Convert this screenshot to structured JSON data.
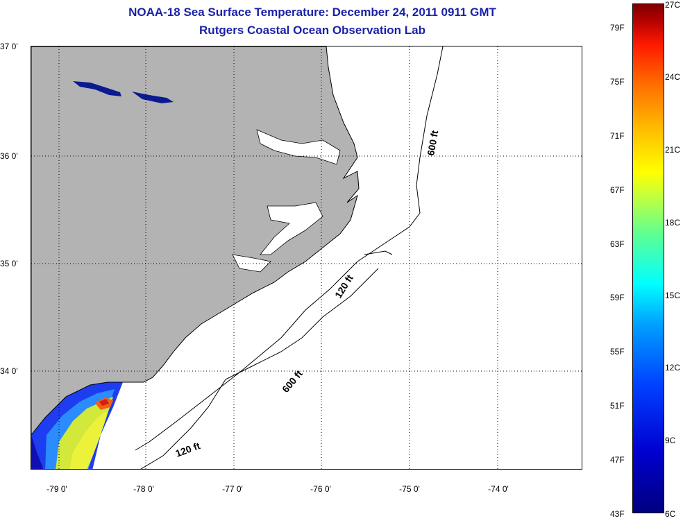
{
  "title": {
    "line1": "NOAA-18 Sea Surface Temperature:  December 24, 2011 0911 GMT",
    "line2": "Rutgers Coastal Ocean Observation Lab"
  },
  "map": {
    "lat_labels": [
      "37 0'",
      "36 0'",
      "35 0'",
      "34 0'"
    ],
    "lon_labels": [
      "-79 0'",
      "-78 0'",
      "-77 0'",
      "-76 0'",
      "-75 0'",
      "-74 0'"
    ],
    "lat_range": [
      33.1,
      37.0
    ],
    "lon_range": [
      -79.3,
      -73.05
    ],
    "grid": "dotted",
    "land_color": "#b3b3b3",
    "contour_labels": [
      "600 ft",
      "120 ft",
      "600 ft",
      "120 ft"
    ]
  },
  "colorbar": {
    "fahrenheit": [
      "79F",
      "75F",
      "71F",
      "67F",
      "63F",
      "59F",
      "55F",
      "51F",
      "47F",
      "43F"
    ],
    "celsius": [
      "27C",
      "24C",
      "21C",
      "18C",
      "15C",
      "12C",
      "9C",
      "6C"
    ],
    "min_c": 6,
    "max_c": 27,
    "colors": [
      "#00007f",
      "#0000ff",
      "#00a0ff",
      "#00ffff",
      "#80ff80",
      "#ffff00",
      "#ff8000",
      "#ff0000",
      "#7f0000"
    ]
  }
}
